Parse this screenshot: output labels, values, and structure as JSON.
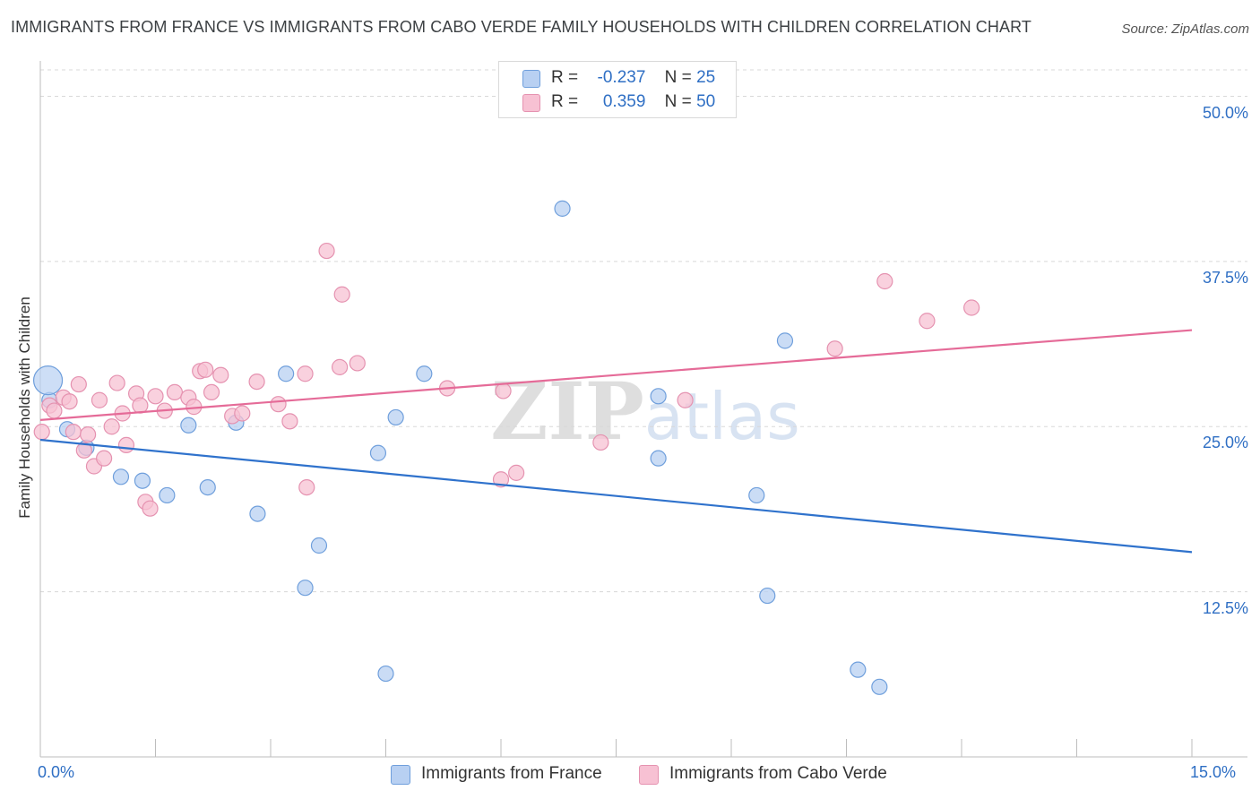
{
  "title": "IMMIGRANTS FROM FRANCE VS IMMIGRANTS FROM CABO VERDE FAMILY HOUSEHOLDS WITH CHILDREN CORRELATION CHART",
  "source": "Source: ZipAtlas.com",
  "watermark": "ZIPatlas",
  "legend": {
    "r_label": "R =",
    "n_label": "N =",
    "rows": [
      {
        "r": "-0.237",
        "n": "25"
      },
      {
        "r": "0.359",
        "n": "50"
      }
    ]
  },
  "colors": {
    "france_fill": "#b8d0f2",
    "france_stroke": "#6f9fdc",
    "france_line": "#2f72cc",
    "cabo_fill": "#f7c1d3",
    "cabo_stroke": "#e592b0",
    "cabo_line": "#e56b98",
    "tick_text": "#2f6fc4",
    "grid": "#d8d8d8"
  },
  "chart_data": {
    "type": "scatter",
    "title": "IMMIGRANTS FROM FRANCE VS IMMIGRANTS FROM CABO VERDE FAMILY HOUSEHOLDS WITH CHILDREN CORRELATION CHART",
    "xlabel": "",
    "ylabel": "Family Households with Children",
    "xlim": [
      0,
      15
    ],
    "ylim": [
      0,
      52
    ],
    "x_tick_labels": [
      "0.0%",
      "15.0%"
    ],
    "y_ticks": [
      12.5,
      25.0,
      37.5,
      50.0
    ],
    "y_tick_labels": [
      "12.5%",
      "25.0%",
      "37.5%",
      "50.0%"
    ],
    "grid": true,
    "legend_position": "bottom",
    "series": [
      {
        "name": "Immigrants from France",
        "points": [
          [
            0.12,
            27.0
          ],
          [
            0.35,
            24.8
          ],
          [
            0.6,
            23.4
          ],
          [
            1.05,
            21.2
          ],
          [
            1.33,
            20.9
          ],
          [
            1.65,
            19.8
          ],
          [
            1.93,
            25.1
          ],
          [
            2.18,
            20.4
          ],
          [
            2.55,
            25.3
          ],
          [
            2.83,
            18.4
          ],
          [
            3.2,
            29.0
          ],
          [
            3.45,
            12.8
          ],
          [
            3.63,
            16.0
          ],
          [
            4.4,
            23.0
          ],
          [
            4.5,
            6.3
          ],
          [
            4.63,
            25.7
          ],
          [
            5.0,
            29.0
          ],
          [
            6.8,
            41.5
          ],
          [
            8.05,
            27.3
          ],
          [
            8.05,
            22.6
          ],
          [
            9.33,
            19.8
          ],
          [
            9.47,
            12.2
          ],
          [
            9.7,
            31.5
          ],
          [
            10.65,
            6.6
          ],
          [
            10.93,
            5.3
          ]
        ],
        "trend": [
          [
            0,
            24.0
          ],
          [
            15,
            15.5
          ]
        ]
      },
      {
        "name": "Immigrants from Cabo Verde",
        "points": [
          [
            0.02,
            24.6
          ],
          [
            0.12,
            26.6
          ],
          [
            0.18,
            26.2
          ],
          [
            0.3,
            27.2
          ],
          [
            0.38,
            26.9
          ],
          [
            0.43,
            24.6
          ],
          [
            0.5,
            28.2
          ],
          [
            0.57,
            23.2
          ],
          [
            0.62,
            24.4
          ],
          [
            0.7,
            22.0
          ],
          [
            0.77,
            27.0
          ],
          [
            0.83,
            22.6
          ],
          [
            0.93,
            25.0
          ],
          [
            1.0,
            28.3
          ],
          [
            1.07,
            26.0
          ],
          [
            1.12,
            23.6
          ],
          [
            1.25,
            27.5
          ],
          [
            1.3,
            26.6
          ],
          [
            1.37,
            19.3
          ],
          [
            1.43,
            18.8
          ],
          [
            1.5,
            27.3
          ],
          [
            1.62,
            26.2
          ],
          [
            1.75,
            27.6
          ],
          [
            1.93,
            27.2
          ],
          [
            2.0,
            26.5
          ],
          [
            2.08,
            29.2
          ],
          [
            2.15,
            29.3
          ],
          [
            2.23,
            27.6
          ],
          [
            2.35,
            28.9
          ],
          [
            2.5,
            25.8
          ],
          [
            2.63,
            26.0
          ],
          [
            2.82,
            28.4
          ],
          [
            3.1,
            26.7
          ],
          [
            3.25,
            25.4
          ],
          [
            3.45,
            29.0
          ],
          [
            3.47,
            20.4
          ],
          [
            3.73,
            38.3
          ],
          [
            3.9,
            29.5
          ],
          [
            3.93,
            35.0
          ],
          [
            4.13,
            29.8
          ],
          [
            6.0,
            21.0
          ],
          [
            6.03,
            27.7
          ],
          [
            6.2,
            21.5
          ],
          [
            7.3,
            23.8
          ],
          [
            8.4,
            27.0
          ],
          [
            10.35,
            30.9
          ],
          [
            11.55,
            33.0
          ],
          [
            12.13,
            34.0
          ],
          [
            11.0,
            36.0
          ],
          [
            5.3,
            27.9
          ]
        ],
        "trend": [
          [
            0,
            25.5
          ],
          [
            15,
            32.3
          ]
        ]
      }
    ]
  }
}
